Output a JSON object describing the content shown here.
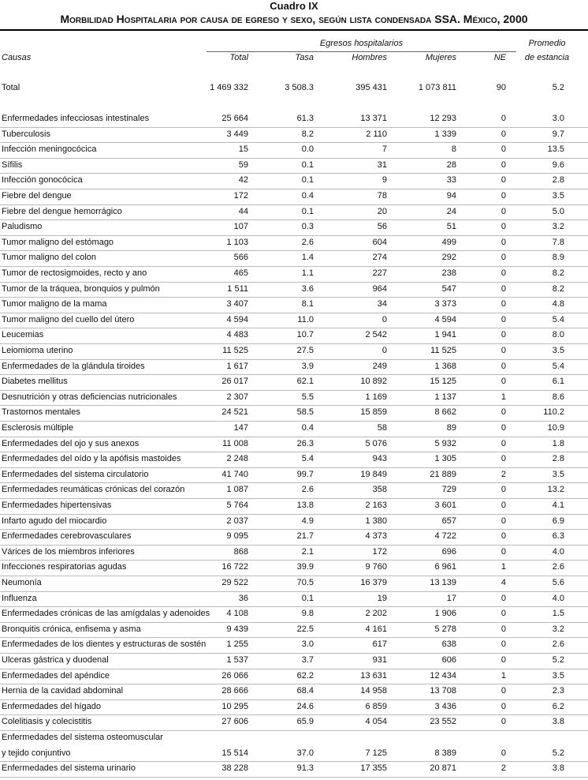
{
  "header": {
    "title": "Cuadro IX",
    "subtitle": "Morbilidad Hospitalaria por causa de egreso y sexo, según lista condensada SSA. México, 2000"
  },
  "table": {
    "group_header": "Egresos hospitalarios",
    "columns": [
      "Causas",
      "Total",
      "Tasa",
      "Hombres",
      "Mujeres",
      "NE",
      "Promedio\nde estancia"
    ],
    "total_row": [
      "Total",
      "1 469 332",
      "3 508.3",
      "395 431",
      "1 073 811",
      "90",
      "5.2"
    ],
    "rows": [
      [
        "Enfermedades infecciosas intestinales",
        "25 664",
        "61.3",
        "13 371",
        "12 293",
        "0",
        "3.0"
      ],
      [
        "Tuberculosis",
        "3 449",
        "8.2",
        "2 110",
        "1 339",
        "0",
        "9.7"
      ],
      [
        "Infección meningocócica",
        "15",
        "0.0",
        "7",
        "8",
        "0",
        "13.5"
      ],
      [
        "Sífilis",
        "59",
        "0.1",
        "31",
        "28",
        "0",
        "9.6"
      ],
      [
        "Infección gonocócica",
        "42",
        "0.1",
        "9",
        "33",
        "0",
        "2.8"
      ],
      [
        "Fiebre del dengue",
        "172",
        "0.4",
        "78",
        "94",
        "0",
        "3.5"
      ],
      [
        "Fiebre del dengue hemorrágico",
        "44",
        "0.1",
        "20",
        "24",
        "0",
        "5.0"
      ],
      [
        "Paludismo",
        "107",
        "0.3",
        "56",
        "51",
        "0",
        "3.2"
      ],
      [
        "Tumor maligno del estómago",
        "1 103",
        "2.6",
        "604",
        "499",
        "0",
        "7.8"
      ],
      [
        "Tumor maligno del colon",
        "566",
        "1.4",
        "274",
        "292",
        "0",
        "8.9"
      ],
      [
        "Tumor de rectosigmoides, recto y ano",
        "465",
        "1.1",
        "227",
        "238",
        "0",
        "8.2"
      ],
      [
        "Tumor de la tráquea, bronquios y pulmón",
        "1 511",
        "3.6",
        "964",
        "547",
        "0",
        "8.2"
      ],
      [
        "Tumor maligno de la mama",
        "3 407",
        "8.1",
        "34",
        "3 373",
        "0",
        "4.8"
      ],
      [
        "Tumor maligno del cuello del útero",
        "4 594",
        "11.0",
        "0",
        "4 594",
        "0",
        "5.4"
      ],
      [
        "Leucemias",
        "4 483",
        "10.7",
        "2 542",
        "1 941",
        "0",
        "8.0"
      ],
      [
        "Leiomioma uterino",
        "11 525",
        "27.5",
        "0",
        "11 525",
        "0",
        "3.5"
      ],
      [
        "Enfermedades de la glándula tiroides",
        "1 617",
        "3.9",
        "249",
        "1 368",
        "0",
        "5.4"
      ],
      [
        "Diabetes mellitus",
        "26 017",
        "62.1",
        "10 892",
        "15 125",
        "0",
        "6.1"
      ],
      [
        "Desnutrición y otras deficiencias nutricionales",
        "2 307",
        "5.5",
        "1 169",
        "1 137",
        "1",
        "8.6"
      ],
      [
        "Trastornos mentales",
        "24 521",
        "58.5",
        "15 859",
        "8 662",
        "0",
        "110.2"
      ],
      [
        "Esclerosis múltiple",
        "147",
        "0.4",
        "58",
        "89",
        "0",
        "10.9"
      ],
      [
        "Enfermedades del ojo y sus anexos",
        "11 008",
        "26.3",
        "5 076",
        "5 932",
        "0",
        "1.8"
      ],
      [
        "Enfermedades del oído y la apófisis mastoides",
        "2 248",
        "5.4",
        "943",
        "1 305",
        "0",
        "2.8"
      ],
      [
        "Enfermedades del sistema circulatorio",
        "41 740",
        "99.7",
        "19 849",
        "21 889",
        "2",
        "3.5"
      ],
      [
        "Enfermedades reumáticas crónicas del corazón",
        "1 087",
        "2.6",
        "358",
        "729",
        "0",
        "13.2"
      ],
      [
        "Enfermedades hipertensivas",
        "5 764",
        "13.8",
        "2 163",
        "3 601",
        "0",
        "4.1"
      ],
      [
        "Infarto agudo del miocardio",
        "2 037",
        "4.9",
        "1 380",
        "657",
        "0",
        "6.9"
      ],
      [
        "Enfermedades cerebrovasculares",
        "9 095",
        "21.7",
        "4 373",
        "4 722",
        "0",
        "6.3"
      ],
      [
        "Várices de los miembros inferiores",
        "868",
        "2.1",
        "172",
        "696",
        "0",
        "4.0"
      ],
      [
        "Infecciones respiratorias agudas",
        "16 722",
        "39.9",
        "9 760",
        "6 961",
        "1",
        "2.6"
      ],
      [
        "Neumonía",
        "29 522",
        "70.5",
        "16 379",
        "13 139",
        "4",
        "5.6"
      ],
      [
        "Influenza",
        "36",
        "0.1",
        "19",
        "17",
        "0",
        "4.0"
      ],
      [
        "Enfermedades crónicas de las amígdalas y adenoides",
        "4 108",
        "9.8",
        "2 202",
        "1 906",
        "0",
        "1.5"
      ],
      [
        "Bronquitis crónica, enfisema y asma",
        "9 439",
        "22.5",
        "4 161",
        "5 278",
        "0",
        "3.2"
      ],
      [
        "Enfermedades de los dientes y estructuras de sostén",
        "1 255",
        "3.0",
        "617",
        "638",
        "0",
        "2.6"
      ],
      [
        "Ulceras gástrica y duodenal",
        "1 537",
        "3.7",
        "931",
        "606",
        "0",
        "5.2"
      ],
      [
        "Enfermedades del apéndice",
        "26 066",
        "62.2",
        "13 631",
        "12 434",
        "1",
        "3.5"
      ],
      [
        "Hernia de la cavidad abdominal",
        "28 666",
        "68.4",
        "14 958",
        "13 708",
        "0",
        "2.3"
      ],
      [
        "Enfermedades del hígado",
        "10 295",
        "24.6",
        "6 859",
        "3 436",
        "0",
        "6.2"
      ],
      [
        "Colelitiasis y colecistitis",
        "27 606",
        "65.9",
        "4 054",
        "23 552",
        "0",
        "3.8"
      ],
      [
        "Enfermedades del sistema osteomuscular\ny tejido conjuntivo",
        "15 514",
        "37.0",
        "7 125",
        "8 389",
        "0",
        "5.2"
      ],
      [
        "Enfermedades del sistema urinario",
        "38 228",
        "91.3",
        "17 355",
        "20 871",
        "2",
        "3.8"
      ]
    ]
  }
}
